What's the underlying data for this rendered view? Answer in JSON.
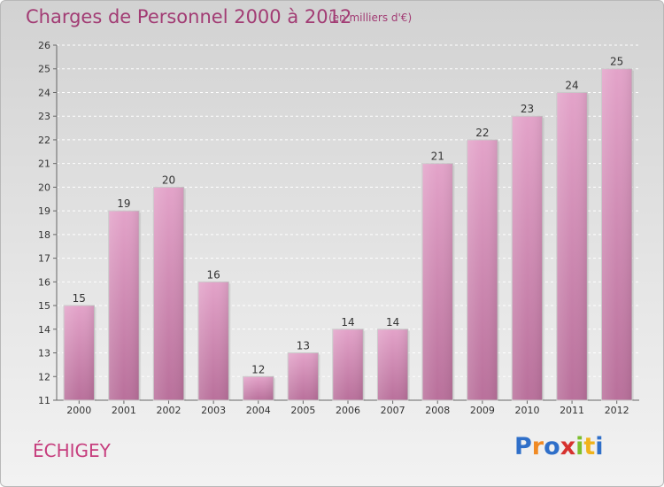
{
  "header": {
    "title": "Charges de Personnel 2000 à 2012",
    "unit": "(en milliers d'€)"
  },
  "footer": {
    "commune": "ÉCHIGEY",
    "logo_letters": [
      "P",
      "r",
      "o",
      "x",
      "i",
      "t",
      "i"
    ],
    "logo_colors": [
      "#2f6fc9",
      "#f08a24",
      "#2f6fc9",
      "#d6322f",
      "#7cbf2e",
      "#f0b31c",
      "#2f6fc9"
    ]
  },
  "colors": {
    "bar_light": "#e3a3c9",
    "bar_dark": "#b9709b",
    "title": "#a23c74"
  },
  "chart_data": {
    "type": "bar",
    "categories": [
      "2000",
      "2001",
      "2002",
      "2003",
      "2004",
      "2005",
      "2006",
      "2007",
      "2008",
      "2009",
      "2010",
      "2011",
      "2012"
    ],
    "values": [
      15,
      19,
      20,
      16,
      12,
      13,
      14,
      14,
      21,
      22,
      23,
      24,
      25
    ],
    "title": "Charges de Personnel 2000 à 2012",
    "ylim": [
      11,
      26
    ],
    "yticks": [
      11,
      12,
      13,
      14,
      15,
      16,
      17,
      18,
      19,
      20,
      21,
      22,
      23,
      24,
      25,
      26
    ],
    "grid": true
  }
}
